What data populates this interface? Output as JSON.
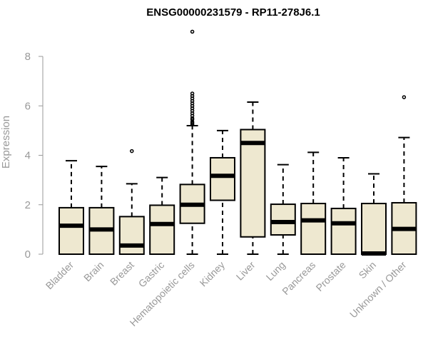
{
  "chart_data": {
    "type": "boxplot",
    "title": "ENSG00000231579 - RP11-278J6.1",
    "ylabel": "Expression",
    "xlabel": "",
    "ylim": [
      0,
      8
    ],
    "yticks": [
      0,
      2,
      4,
      6,
      8
    ],
    "box_color": "#EEE8D0",
    "line_color": "#000000",
    "axis_color": "#999999",
    "categories": [
      "Bladder",
      "Brain",
      "Breast",
      "Gastric",
      "Hematopoietic cells",
      "Kidney",
      "Liver",
      "Lung",
      "Pancreas",
      "Prostate",
      "Skin",
      "Unknown / Other"
    ],
    "boxes": [
      {
        "min": 0,
        "q1": 0,
        "median": 1.15,
        "q3": 1.88,
        "max": 3.78,
        "outliers": []
      },
      {
        "min": 0,
        "q1": 0,
        "median": 1.0,
        "q3": 1.88,
        "max": 3.55,
        "outliers": []
      },
      {
        "min": 0,
        "q1": 0,
        "median": 0.35,
        "q3": 1.52,
        "max": 2.85,
        "outliers": [
          4.17
        ]
      },
      {
        "min": 0,
        "q1": 0,
        "median": 1.22,
        "q3": 1.98,
        "max": 3.1,
        "outliers": []
      },
      {
        "min": 0,
        "q1": 1.25,
        "median": 2.0,
        "q3": 2.82,
        "max": 5.2,
        "outliers": [
          5.25,
          5.3,
          5.35,
          5.45,
          5.5,
          5.6,
          5.7,
          5.8,
          5.9,
          6.0,
          6.1,
          6.2,
          6.3,
          6.4,
          6.5,
          9.0
        ]
      },
      {
        "min": 0,
        "q1": 2.18,
        "median": 3.17,
        "q3": 3.9,
        "max": 5.0,
        "outliers": []
      },
      {
        "min": 0,
        "q1": 0.7,
        "median": 4.5,
        "q3": 5.04,
        "max": 6.15,
        "outliers": []
      },
      {
        "min": 0,
        "q1": 0.78,
        "median": 1.3,
        "q3": 2.02,
        "max": 3.62,
        "outliers": []
      },
      {
        "min": 0,
        "q1": 0,
        "median": 1.37,
        "q3": 2.05,
        "max": 4.12,
        "outliers": []
      },
      {
        "min": 0,
        "q1": 0,
        "median": 1.25,
        "q3": 1.85,
        "max": 3.9,
        "outliers": []
      },
      {
        "min": 0,
        "q1": 0,
        "median": 0.03,
        "q3": 2.05,
        "max": 3.25,
        "outliers": []
      },
      {
        "min": 0,
        "q1": 0,
        "median": 1.02,
        "q3": 2.08,
        "max": 4.72,
        "outliers": [
          6.35
        ]
      }
    ]
  }
}
